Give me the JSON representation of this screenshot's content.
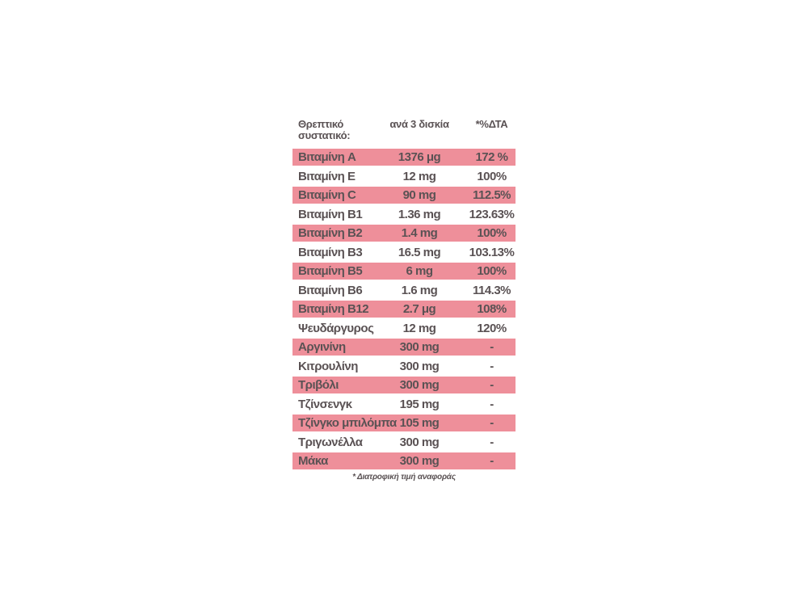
{
  "colors": {
    "stripe_pink": "#EE8F9A",
    "text_gray": "#5A5254",
    "background": "#ffffff"
  },
  "table": {
    "header": {
      "nutrient": "Θρεπτικό συστατικό:",
      "amount": "ανά 3 δισκία",
      "dta": "*%ΔΤΑ"
    },
    "rows": [
      {
        "name": "Βιταμίνη A",
        "amount": "1376 μg",
        "dta": "172 %",
        "pink": true
      },
      {
        "name": "Βιταμίνη E",
        "amount": "12 mg",
        "dta": "100%",
        "pink": false
      },
      {
        "name": "Βιταμίνη C",
        "amount": "90 mg",
        "dta": "112.5%",
        "pink": true
      },
      {
        "name": "Βιταμίνη B1",
        "amount": "1.36 mg",
        "dta": "123.63%",
        "pink": false
      },
      {
        "name": "Βιταμίνη B2",
        "amount": "1.4 mg",
        "dta": "100%",
        "pink": true
      },
      {
        "name": "Βιταμίνη B3",
        "amount": "16.5 mg",
        "dta": "103.13%",
        "pink": false
      },
      {
        "name": "Βιταμίνη B5",
        "amount": "6 mg",
        "dta": "100%",
        "pink": true
      },
      {
        "name": "Βιταμίνη B6",
        "amount": "1.6 mg",
        "dta": "114.3%",
        "pink": false
      },
      {
        "name": "Βιταμίνη B12",
        "amount": "2.7 μg",
        "dta": "108%",
        "pink": true
      },
      {
        "name": "Ψευδάργυρος",
        "amount": "12 mg",
        "dta": "120%",
        "pink": false
      },
      {
        "name": "Αργινίνη",
        "amount": "300 mg",
        "dta": "-",
        "pink": true
      },
      {
        "name": "Κιτρουλίνη",
        "amount": "300 mg",
        "dta": "-",
        "pink": false
      },
      {
        "name": "Τριβόλι",
        "amount": "300 mg",
        "dta": "-",
        "pink": true
      },
      {
        "name": "Τζίνσενγκ",
        "amount": "195 mg",
        "dta": "-",
        "pink": false
      },
      {
        "name": "Τζίνγκο μπιλόμπα",
        "amount": "105 mg",
        "dta": "-",
        "pink": true
      },
      {
        "name": "Τριγωνέλλα",
        "amount": "300 mg",
        "dta": "-",
        "pink": false
      },
      {
        "name": "Μάκα",
        "amount": "300 mg",
        "dta": "-",
        "pink": true
      }
    ],
    "footnote": "* Διατροφική τιμή αναφοράς"
  }
}
